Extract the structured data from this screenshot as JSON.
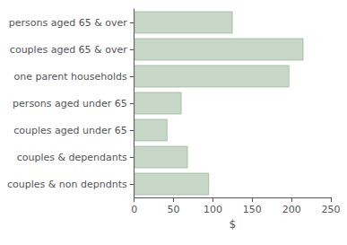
{
  "chart_data": {
    "type": "bar",
    "orientation": "horizontal",
    "categories": [
      "couples & non depndnts",
      "couples & dependants",
      "couples aged under 65",
      "persons aged under 65",
      "one parent households",
      "couples aged 65 & over",
      "persons aged 65 & over"
    ],
    "values": [
      95,
      68,
      42,
      60,
      197,
      215,
      125
    ],
    "color": "#c8d8c8",
    "xlabel": "$",
    "xlim": [
      0,
      250
    ],
    "xticks": [
      0,
      50,
      100,
      150,
      200,
      250
    ],
    "grid": false
  }
}
